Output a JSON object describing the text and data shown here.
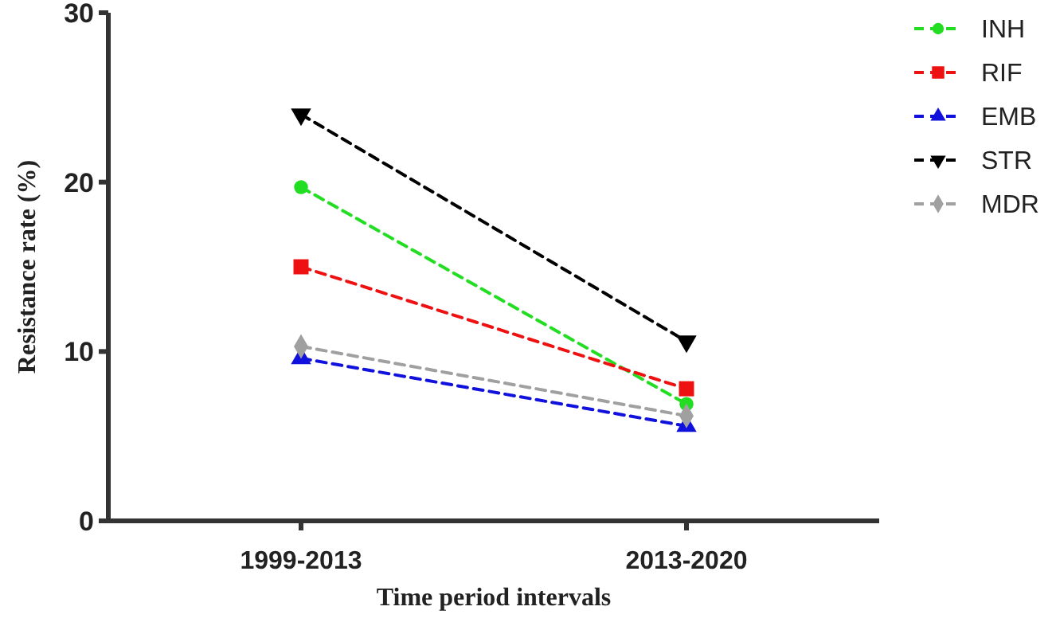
{
  "chart_data": {
    "type": "line",
    "xlabel": "Time period intervals",
    "ylabel": "Resistance rate (%)",
    "categories": [
      "1999-2013",
      "2013-2020"
    ],
    "ylim": [
      0,
      30
    ],
    "yticks": [
      0,
      10,
      20,
      30
    ],
    "grid": false,
    "legend": "top right",
    "line_style": "dashed",
    "series": [
      {
        "name": "INH",
        "color": "#22dd22",
        "marker": "circle",
        "values": [
          19.7,
          6.9
        ]
      },
      {
        "name": "RIF",
        "color": "#ee1111",
        "marker": "square",
        "values": [
          15.0,
          7.8
        ]
      },
      {
        "name": "EMB",
        "color": "#1111dd",
        "marker": "triangle",
        "values": [
          9.6,
          5.6
        ]
      },
      {
        "name": "STR",
        "color": "#000000",
        "marker": "triangle-down",
        "values": [
          24.0,
          10.6
        ]
      },
      {
        "name": "MDR",
        "color": "#a0a0a0",
        "marker": "diamond",
        "values": [
          10.3,
          6.2
        ]
      }
    ]
  }
}
